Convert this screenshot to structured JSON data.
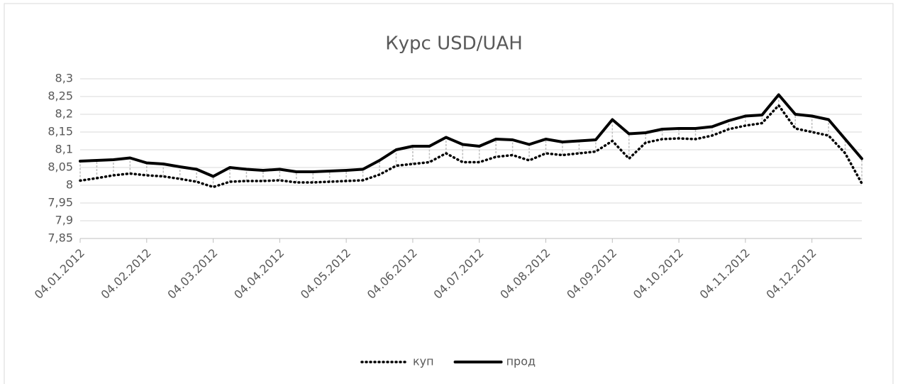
{
  "chart_data": {
    "type": "line",
    "title": "Курс USD/UAH",
    "categories": [
      "04.01.2012",
      null,
      null,
      null,
      "04.02.2012",
      null,
      null,
      null,
      "04.03.2012",
      null,
      null,
      null,
      "04.04.2012",
      null,
      null,
      null,
      "04.05.2012",
      null,
      null,
      null,
      "04.06.2012",
      null,
      null,
      null,
      "04.07.2012",
      null,
      null,
      null,
      "04.08.2012",
      null,
      null,
      null,
      "04.09.2012",
      null,
      null,
      null,
      "04.10.2012",
      null,
      null,
      null,
      "04.11.2012",
      null,
      null,
      null,
      "04.12.2012",
      null,
      null,
      null
    ],
    "series": [
      {
        "name": "куп",
        "color": "#000000",
        "dash": "dotted",
        "values": [
          8.013,
          8.02,
          8.028,
          8.033,
          8.028,
          8.025,
          8.018,
          8.01,
          7.995,
          8.01,
          8.012,
          8.012,
          8.014,
          8.008,
          8.008,
          8.01,
          8.012,
          8.014,
          8.03,
          8.055,
          8.06,
          8.065,
          8.09,
          8.065,
          8.065,
          8.08,
          8.085,
          8.07,
          8.09,
          8.085,
          8.09,
          8.095,
          8.125,
          8.075,
          8.12,
          8.13,
          8.132,
          8.13,
          8.14,
          8.158,
          8.168,
          8.175,
          8.225,
          8.16,
          8.15,
          8.14,
          8.09,
          8.005
        ]
      },
      {
        "name": "прод",
        "color": "#000000",
        "dash": "solid",
        "values": [
          8.068,
          8.07,
          8.072,
          8.077,
          8.063,
          8.06,
          8.052,
          8.045,
          8.025,
          8.05,
          8.045,
          8.042,
          8.045,
          8.038,
          8.038,
          8.04,
          8.042,
          8.045,
          8.07,
          8.1,
          8.11,
          8.11,
          8.135,
          8.115,
          8.11,
          8.13,
          8.128,
          8.115,
          8.13,
          8.122,
          8.125,
          8.128,
          8.185,
          8.145,
          8.148,
          8.158,
          8.16,
          8.16,
          8.165,
          8.182,
          8.195,
          8.198,
          8.255,
          8.2,
          8.195,
          8.185,
          8.13,
          8.075
        ]
      }
    ],
    "ylim": [
      7.85,
      8.3
    ],
    "yticks": [
      {
        "value": 7.85,
        "label": "7,85"
      },
      {
        "value": 7.9,
        "label": "7,9"
      },
      {
        "value": 7.95,
        "label": "7,95"
      },
      8,
      {
        "value": 8.05,
        "label": "8,05"
      },
      {
        "value": 8.1,
        "label": "8,1"
      },
      {
        "value": 8.15,
        "label": "8,15"
      },
      {
        "value": 8.2,
        "label": "8,2"
      },
      {
        "value": 8.25,
        "label": "8,25"
      },
      {
        "value": 8.3,
        "label": "8,3"
      }
    ],
    "grid": true,
    "legend": "bottom"
  }
}
